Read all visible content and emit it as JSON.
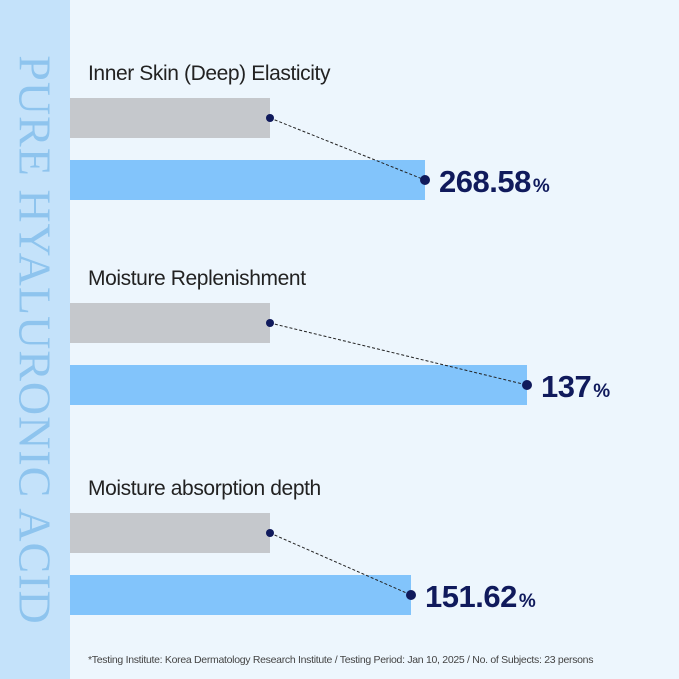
{
  "brand_text": "PURE HYALURONIC ACID",
  "footnote": "*Testing Institute: Korea Dermatology Research Institute / Testing Period: Jan 10, 2025 / No. of Subjects: 23 persons",
  "colors": {
    "baseline_bar": "#c5c8cc",
    "result_bar": "#82c4fb",
    "value_text": "#101a5c",
    "strip": "#c4e2fa",
    "background": "#edf6fd"
  },
  "chart_data": {
    "type": "bar",
    "orientation": "horizontal",
    "unit": "%",
    "categories": [
      "Inner Skin (Deep) Elasticity",
      "Moisture Replenishment",
      "Moisture absorption depth"
    ],
    "value_labels": [
      "268.58",
      "137",
      "151.62"
    ],
    "values": [
      268.58,
      137,
      151.62
    ],
    "baseline_bar_shown": true,
    "grid": false
  }
}
